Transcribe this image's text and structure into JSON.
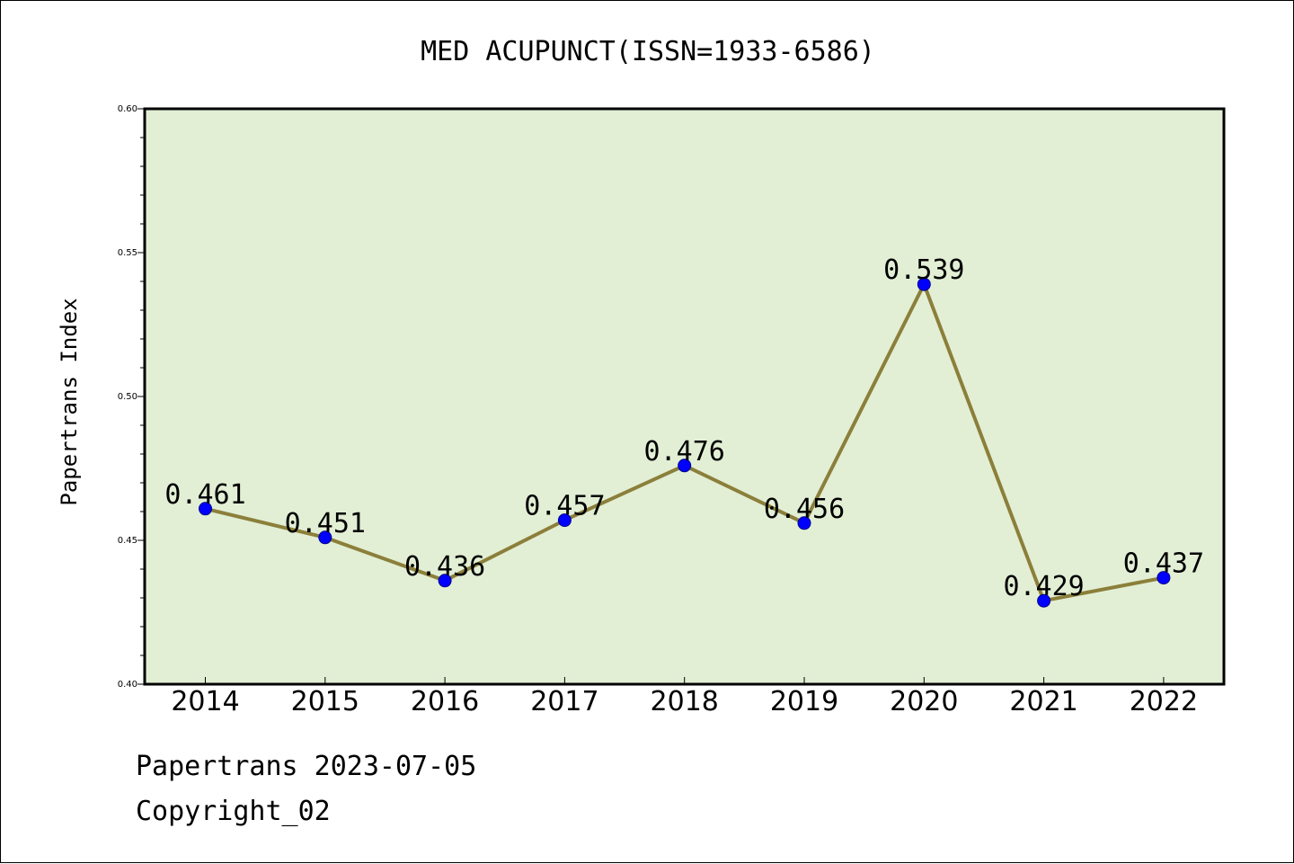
{
  "chart_data": {
    "type": "line",
    "title": "MED ACUPUNCT(ISSN=1933-6586)",
    "xlabel": "",
    "ylabel": "Papertrans Index",
    "categories": [
      "2014",
      "2015",
      "2016",
      "2017",
      "2018",
      "2019",
      "2020",
      "2021",
      "2022"
    ],
    "values": [
      0.461,
      0.451,
      0.436,
      0.457,
      0.476,
      0.456,
      0.539,
      0.429,
      0.437
    ],
    "data_labels": [
      "0.461",
      "0.451",
      "0.436",
      "0.457",
      "0.476",
      "0.456",
      "0.539",
      "0.429",
      "0.437"
    ],
    "ylim": [
      0.4,
      0.6
    ],
    "yticks": [
      0.4,
      0.45,
      0.5,
      0.55,
      0.6
    ],
    "ytick_labels": [
      "0.40",
      "0.45",
      "0.50",
      "0.55",
      "0.60"
    ],
    "grid": false,
    "legend": "none"
  },
  "colors": {
    "plot_background": "#e2efd5",
    "line": "#8b7f3a",
    "marker": "#0000ff"
  },
  "footer": {
    "line1": "Papertrans 2023-07-05",
    "line2": "Copyright_02"
  }
}
